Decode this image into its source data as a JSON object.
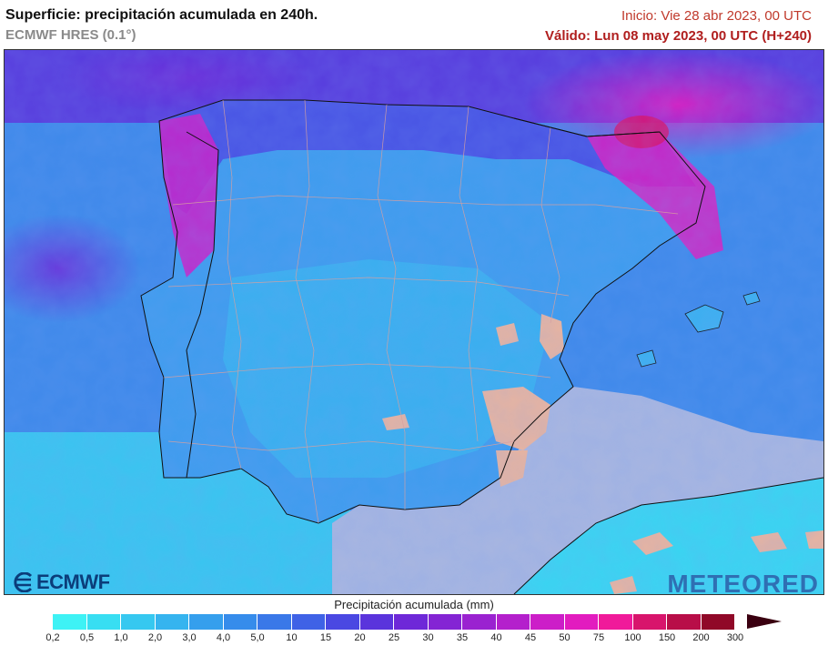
{
  "header": {
    "title": "Superficie: precipitación acumulada en 240h.",
    "model": "ECMWF HRES (0.1°)",
    "init": "Inicio: Vie 28 abr 2023, 00 UTC",
    "valid": "Válido: Lun 08 may 2023, 00 UTC (H+240)"
  },
  "logos": {
    "left": "ECMWF",
    "right": "METEORED"
  },
  "legend": {
    "title": "Precipitación acumulada (mm)",
    "ticks": [
      "0,2",
      "0,5",
      "1,0",
      "2,0",
      "3,0",
      "4,0",
      "5,0",
      "10",
      "15",
      "20",
      "25",
      "30",
      "35",
      "40",
      "45",
      "50",
      "75",
      "100",
      "150",
      "200",
      "300"
    ],
    "colors": [
      "#3ef2f5",
      "#38def2",
      "#36c8f0",
      "#35b4ef",
      "#359fed",
      "#368ceb",
      "#3a78e8",
      "#3f62e6",
      "#4a48e2",
      "#5a34dc",
      "#6e28d8",
      "#8424d4",
      "#9a22d0",
      "#b420cc",
      "#cc1ec8",
      "#e21cbf",
      "#f01a9a",
      "#d8146c",
      "#b80e48",
      "#900828",
      "#5c0418"
    ]
  },
  "map": {
    "region": "Península Ibérica",
    "sea_color": "#a8b6e0",
    "land_low_color": "#3ab0f0",
    "dry_color": "#e8b4a0"
  }
}
